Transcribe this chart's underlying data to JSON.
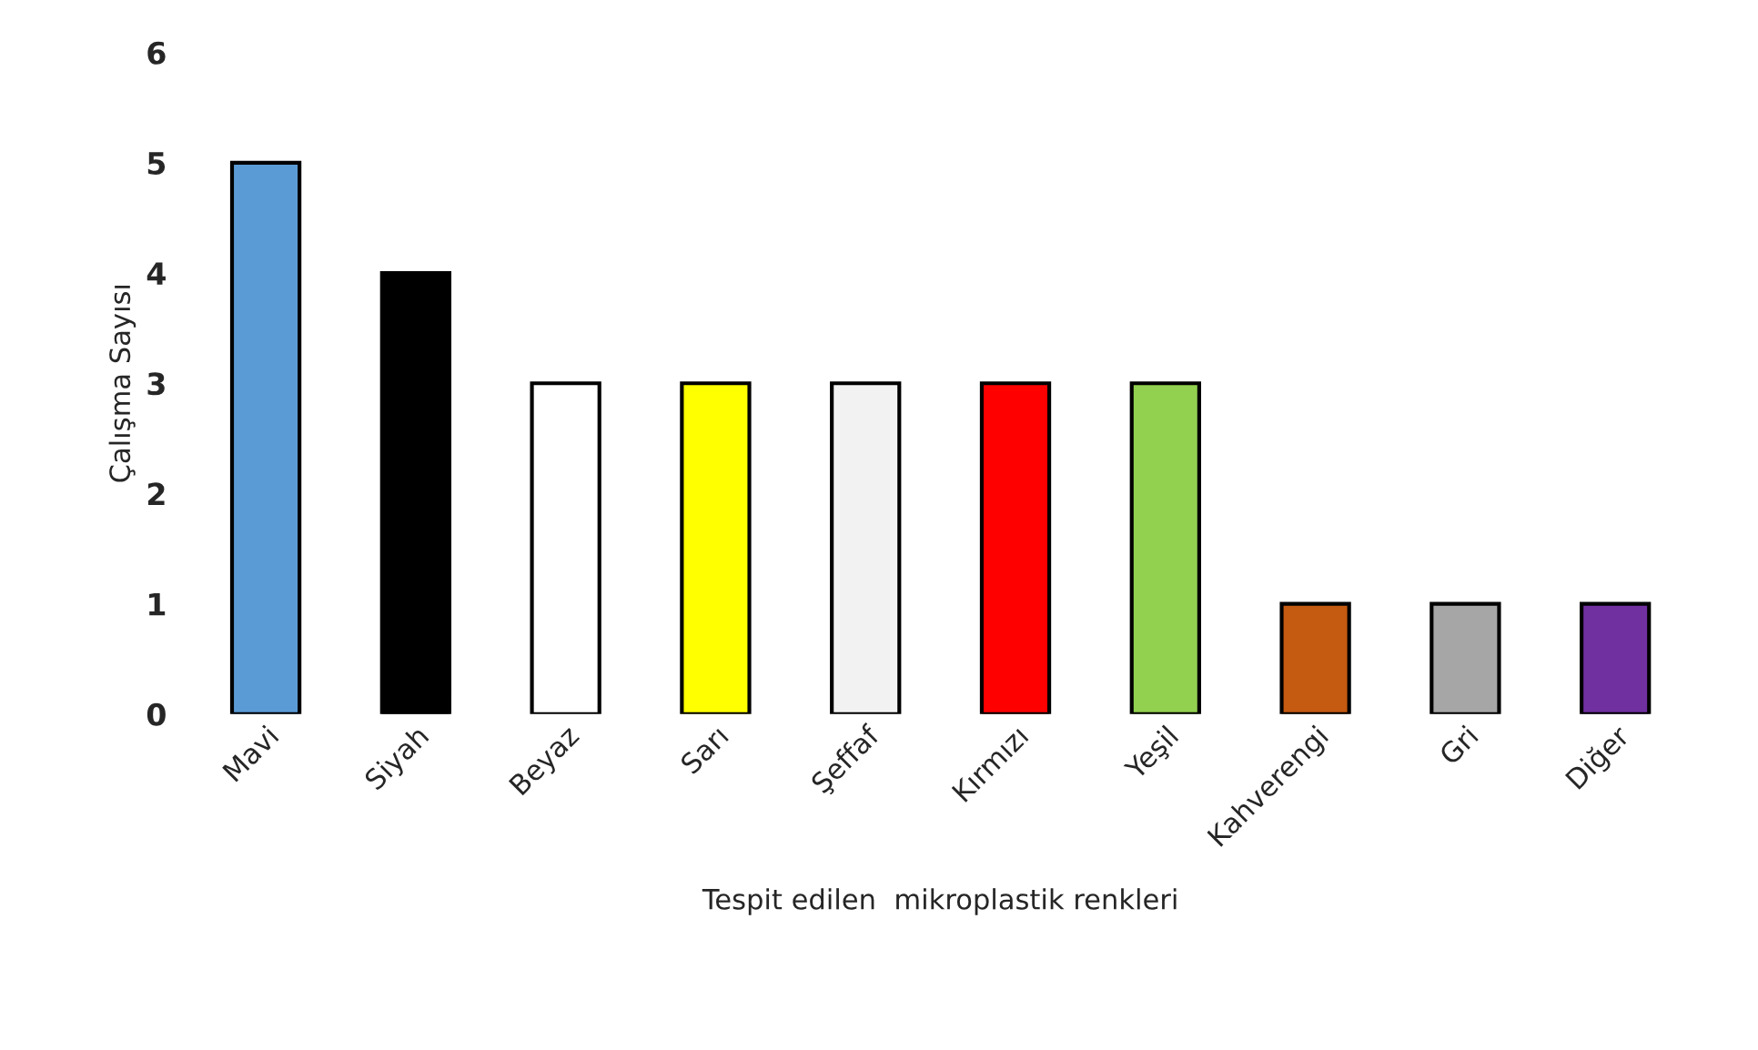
{
  "chart_data": {
    "type": "bar",
    "xlabel": "Tespit edilen  mikroplastik renkleri",
    "ylabel": "Çalışma Sayısı",
    "categories": [
      "Mavi",
      "Siyah",
      "Beyaz",
      "Sarı",
      "Şeffaf",
      "Kırmızı",
      "Yeşil",
      "Kahverengi",
      "Gri",
      "Diğer"
    ],
    "values": [
      5,
      4,
      3,
      3,
      3,
      3,
      3,
      1,
      1,
      1
    ],
    "colors": [
      "#5b9bd5",
      "#000000",
      "#ffffff",
      "#ffff00",
      "#f2f2f2",
      "#ff0000",
      "#92d050",
      "#c55a11",
      "#a6a6a6",
      "#7030a0"
    ],
    "ylim": [
      0,
      6
    ],
    "yticks": [
      0,
      1,
      2,
      3,
      4,
      5,
      6
    ],
    "grid": false,
    "legend": false
  }
}
